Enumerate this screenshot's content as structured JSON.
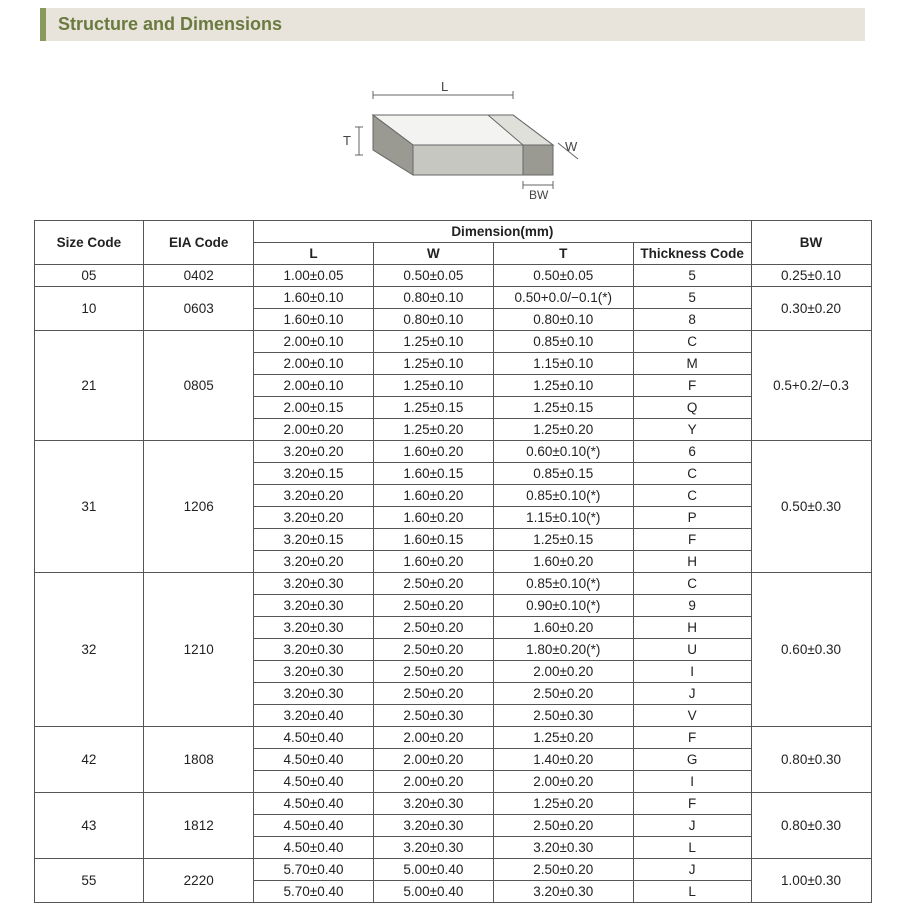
{
  "title": "Structure and Dimensions",
  "diagram": {
    "labels": {
      "L": "L",
      "W": "W",
      "T": "T",
      "BW": "BW"
    },
    "stroke": "#666666",
    "fill_light": "#f3f3f1",
    "fill_mid": "#c7c7c2",
    "fill_dark": "#9a9a93"
  },
  "table": {
    "header": {
      "size": "Size Code",
      "eia": "EIA Code",
      "dim": "Dimension(mm)",
      "L": "L",
      "W": "W",
      "T": "T",
      "tc": "Thickness  Code",
      "bw": "BW"
    },
    "groups": [
      {
        "size": "05",
        "eia": "0402",
        "bw": "0.25±0.10",
        "rows": [
          {
            "L": "1.00±0.05",
            "W": "0.50±0.05",
            "T": "0.50±0.05",
            "TC": "5"
          }
        ]
      },
      {
        "size": "10",
        "eia": "0603",
        "bw": "0.30±0.20",
        "rows": [
          {
            "L": "1.60±0.10",
            "W": "0.80±0.10",
            "T": "0.50+0.0/−0.1(*)",
            "TC": "5"
          },
          {
            "L": "1.60±0.10",
            "W": "0.80±0.10",
            "T": "0.80±0.10",
            "TC": "8"
          }
        ]
      },
      {
        "size": "21",
        "eia": "0805",
        "bw": "0.5+0.2/−0.3",
        "rows": [
          {
            "L": "2.00±0.10",
            "W": "1.25±0.10",
            "T": "0.85±0.10",
            "TC": "C"
          },
          {
            "L": "2.00±0.10",
            "W": "1.25±0.10",
            "T": "1.15±0.10",
            "TC": "M"
          },
          {
            "L": "2.00±0.10",
            "W": "1.25±0.10",
            "T": "1.25±0.10",
            "TC": "F"
          },
          {
            "L": "2.00±0.15",
            "W": "1.25±0.15",
            "T": "1.25±0.15",
            "TC": "Q"
          },
          {
            "L": "2.00±0.20",
            "W": "1.25±0.20",
            "T": "1.25±0.20",
            "TC": "Y"
          }
        ]
      },
      {
        "size": "31",
        "eia": "1206",
        "bw": "0.50±0.30",
        "rows": [
          {
            "L": "3.20±0.20",
            "W": "1.60±0.20",
            "T": "0.60±0.10(*)",
            "TC": "6"
          },
          {
            "L": "3.20±0.15",
            "W": "1.60±0.15",
            "T": "0.85±0.15",
            "TC": "C"
          },
          {
            "L": "3.20±0.20",
            "W": "1.60±0.20",
            "T": "0.85±0.10(*)",
            "TC": "C"
          },
          {
            "L": "3.20±0.20",
            "W": "1.60±0.20",
            "T": "1.15±0.10(*)",
            "TC": "P"
          },
          {
            "L": "3.20±0.15",
            "W": "1.60±0.15",
            "T": "1.25±0.15",
            "TC": "F"
          },
          {
            "L": "3.20±0.20",
            "W": "1.60±0.20",
            "T": "1.60±0.20",
            "TC": "H"
          }
        ]
      },
      {
        "size": "32",
        "eia": "1210",
        "bw": "0.60±0.30",
        "rows": [
          {
            "L": "3.20±0.30",
            "W": "2.50±0.20",
            "T": "0.85±0.10(*)",
            "TC": "C"
          },
          {
            "L": "3.20±0.30",
            "W": "2.50±0.20",
            "T": "0.90±0.10(*)",
            "TC": "9"
          },
          {
            "L": "3.20±0.30",
            "W": "2.50±0.20",
            "T": "1.60±0.20",
            "TC": "H"
          },
          {
            "L": "3.20±0.30",
            "W": "2.50±0.20",
            "T": "1.80±0.20(*)",
            "TC": "U"
          },
          {
            "L": "3.20±0.30",
            "W": "2.50±0.20",
            "T": "2.00±0.20",
            "TC": "I"
          },
          {
            "L": "3.20±0.30",
            "W": "2.50±0.20",
            "T": "2.50±0.20",
            "TC": "J"
          },
          {
            "L": "3.20±0.40",
            "W": "2.50±0.30",
            "T": "2.50±0.30",
            "TC": "V"
          }
        ]
      },
      {
        "size": "42",
        "eia": "1808",
        "bw": "0.80±0.30",
        "rows": [
          {
            "L": "4.50±0.40",
            "W": "2.00±0.20",
            "T": "1.25±0.20",
            "TC": "F"
          },
          {
            "L": "4.50±0.40",
            "W": "2.00±0.20",
            "T": "1.40±0.20",
            "TC": "G"
          },
          {
            "L": "4.50±0.40",
            "W": "2.00±0.20",
            "T": "2.00±0.20",
            "TC": "I"
          }
        ]
      },
      {
        "size": "43",
        "eia": "1812",
        "bw": "0.80±0.30",
        "rows": [
          {
            "L": "4.50±0.40",
            "W": "3.20±0.30",
            "T": "1.25±0.20",
            "TC": "F"
          },
          {
            "L": "4.50±0.40",
            "W": "3.20±0.30",
            "T": "2.50±0.20",
            "TC": "J"
          },
          {
            "L": "4.50±0.40",
            "W": "3.20±0.30",
            "T": "3.20±0.30",
            "TC": "L"
          }
        ]
      },
      {
        "size": "55",
        "eia": "2220",
        "bw": "1.00±0.30",
        "rows": [
          {
            "L": "5.70±0.40",
            "W": "5.00±0.40",
            "T": "2.50±0.20",
            "TC": "J"
          },
          {
            "L": "5.70±0.40",
            "W": "5.00±0.40",
            "T": "3.20±0.30",
            "TC": "L"
          }
        ]
      }
    ]
  }
}
